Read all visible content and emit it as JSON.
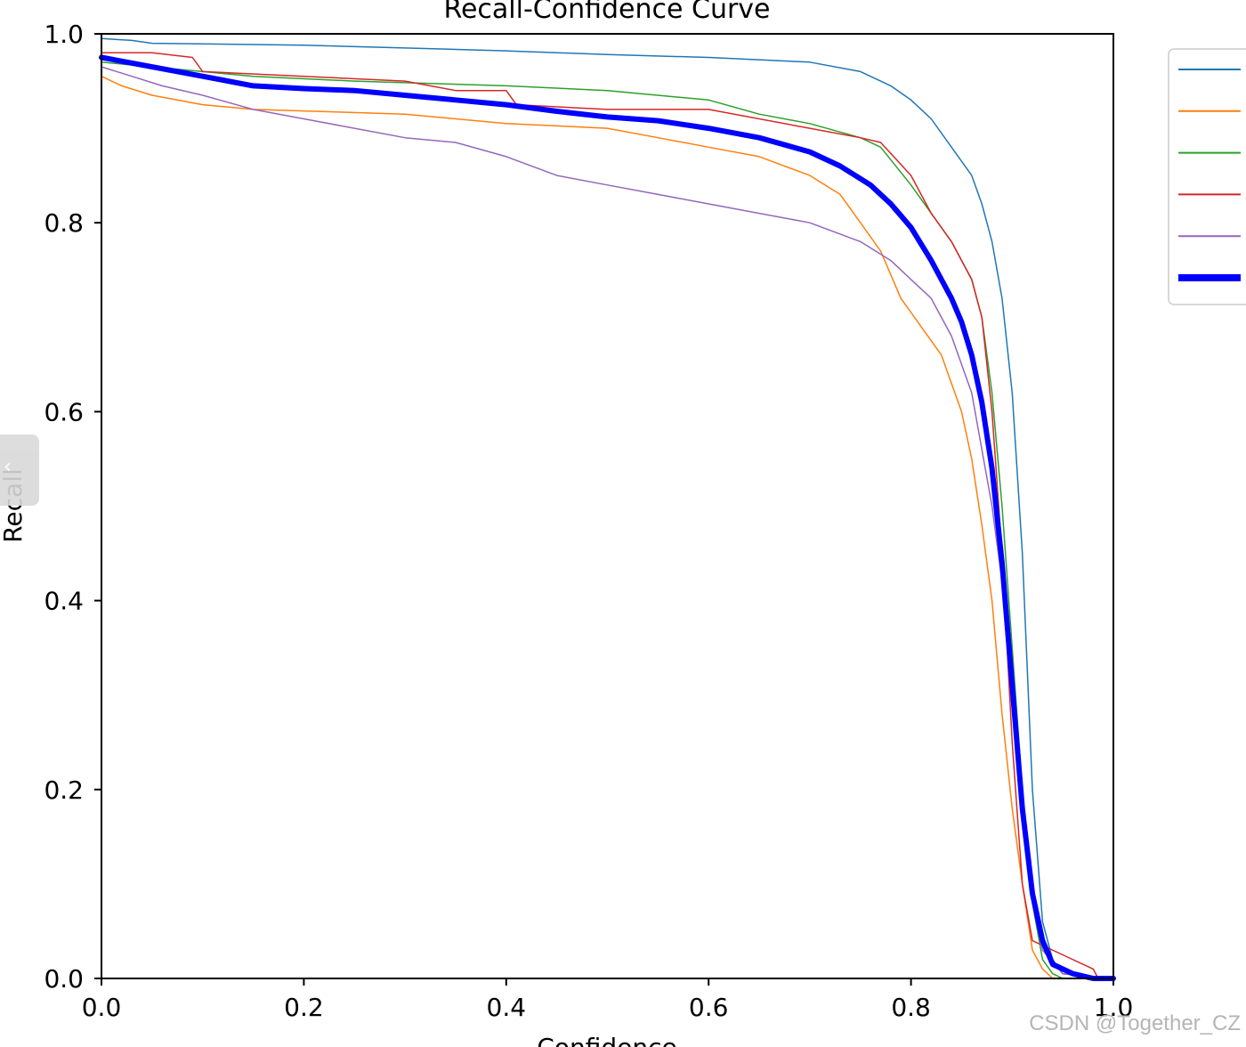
{
  "chart_data": {
    "type": "line",
    "title": "Recall-Confidence Curve",
    "xlabel": "Confidence",
    "ylabel": "Recall",
    "xlim": [
      0,
      1
    ],
    "ylim": [
      0,
      1
    ],
    "xticks": [
      "0.0",
      "0.2",
      "0.4",
      "0.6",
      "0.8",
      "1.0"
    ],
    "yticks": [
      "0.0",
      "0.2",
      "0.4",
      "0.6",
      "0.8",
      "1.0"
    ],
    "grid": false,
    "legend_position": "upper right outside axes",
    "series": [
      {
        "color": "#1f77b4",
        "width": 1.5,
        "x": [
          0,
          0.03,
          0.05,
          0.2,
          0.3,
          0.4,
          0.5,
          0.6,
          0.7,
          0.75,
          0.78,
          0.8,
          0.82,
          0.84,
          0.86,
          0.87,
          0.88,
          0.89,
          0.9,
          0.91,
          0.92,
          0.93,
          0.94,
          0.95,
          1.0
        ],
        "y": [
          0.995,
          0.993,
          0.99,
          0.988,
          0.985,
          0.982,
          0.978,
          0.975,
          0.97,
          0.96,
          0.945,
          0.93,
          0.91,
          0.88,
          0.85,
          0.82,
          0.78,
          0.72,
          0.62,
          0.45,
          0.2,
          0.06,
          0.02,
          0.005,
          0.0
        ]
      },
      {
        "color": "#ff7f0e",
        "width": 1.5,
        "x": [
          0,
          0.02,
          0.05,
          0.1,
          0.15,
          0.3,
          0.4,
          0.5,
          0.55,
          0.6,
          0.65,
          0.7,
          0.73,
          0.75,
          0.77,
          0.79,
          0.81,
          0.83,
          0.85,
          0.86,
          0.87,
          0.88,
          0.89,
          0.9,
          0.91,
          0.92,
          0.93,
          0.94,
          1.0
        ],
        "y": [
          0.955,
          0.945,
          0.935,
          0.925,
          0.92,
          0.915,
          0.905,
          0.9,
          0.89,
          0.88,
          0.87,
          0.85,
          0.83,
          0.8,
          0.77,
          0.72,
          0.69,
          0.66,
          0.6,
          0.55,
          0.48,
          0.4,
          0.28,
          0.18,
          0.1,
          0.03,
          0.01,
          0.0,
          0.0
        ]
      },
      {
        "color": "#2ca02c",
        "width": 1.5,
        "x": [
          0,
          0.05,
          0.1,
          0.15,
          0.25,
          0.4,
          0.5,
          0.6,
          0.65,
          0.7,
          0.75,
          0.77,
          0.8,
          0.82,
          0.84,
          0.86,
          0.87,
          0.88,
          0.89,
          0.9,
          0.91,
          0.92,
          0.93,
          0.94,
          0.95,
          1.0
        ],
        "y": [
          0.97,
          0.965,
          0.96,
          0.955,
          0.95,
          0.945,
          0.94,
          0.93,
          0.915,
          0.905,
          0.89,
          0.88,
          0.84,
          0.81,
          0.78,
          0.74,
          0.7,
          0.62,
          0.5,
          0.35,
          0.2,
          0.08,
          0.02,
          0.005,
          0.0,
          0.0
        ]
      },
      {
        "color": "#d62728",
        "width": 1.5,
        "x": [
          0,
          0.05,
          0.09,
          0.1,
          0.2,
          0.3,
          0.35,
          0.4,
          0.41,
          0.5,
          0.6,
          0.7,
          0.75,
          0.77,
          0.8,
          0.82,
          0.84,
          0.86,
          0.87,
          0.88,
          0.89,
          0.9,
          0.91,
          0.92,
          0.95,
          0.98,
          0.985,
          1.0
        ],
        "y": [
          0.98,
          0.98,
          0.975,
          0.96,
          0.955,
          0.95,
          0.94,
          0.94,
          0.925,
          0.92,
          0.92,
          0.9,
          0.89,
          0.885,
          0.85,
          0.81,
          0.78,
          0.74,
          0.7,
          0.6,
          0.45,
          0.25,
          0.1,
          0.04,
          0.025,
          0.01,
          0.0,
          0.0
        ]
      },
      {
        "color": "#9467bd",
        "width": 1.5,
        "x": [
          0,
          0.03,
          0.06,
          0.1,
          0.15,
          0.2,
          0.25,
          0.3,
          0.35,
          0.4,
          0.45,
          0.5,
          0.55,
          0.6,
          0.65,
          0.7,
          0.75,
          0.78,
          0.8,
          0.82,
          0.84,
          0.86,
          0.87,
          0.88,
          0.89,
          0.9,
          0.91,
          0.92,
          0.93,
          0.95,
          1.0
        ],
        "y": [
          0.965,
          0.955,
          0.945,
          0.935,
          0.92,
          0.91,
          0.9,
          0.89,
          0.885,
          0.87,
          0.85,
          0.84,
          0.83,
          0.82,
          0.81,
          0.8,
          0.78,
          0.76,
          0.74,
          0.72,
          0.68,
          0.62,
          0.56,
          0.5,
          0.42,
          0.3,
          0.18,
          0.08,
          0.03,
          0.005,
          0.0
        ]
      },
      {
        "color": "#0000ff",
        "width": 6,
        "x": [
          0,
          0.05,
          0.1,
          0.15,
          0.2,
          0.25,
          0.3,
          0.35,
          0.4,
          0.45,
          0.5,
          0.55,
          0.6,
          0.65,
          0.7,
          0.73,
          0.76,
          0.78,
          0.8,
          0.82,
          0.84,
          0.85,
          0.86,
          0.87,
          0.88,
          0.89,
          0.9,
          0.91,
          0.92,
          0.93,
          0.94,
          0.96,
          0.98,
          1.0
        ],
        "y": [
          0.975,
          0.965,
          0.955,
          0.945,
          0.942,
          0.94,
          0.935,
          0.93,
          0.925,
          0.918,
          0.912,
          0.908,
          0.9,
          0.89,
          0.875,
          0.86,
          0.84,
          0.82,
          0.795,
          0.76,
          0.72,
          0.695,
          0.66,
          0.61,
          0.54,
          0.44,
          0.31,
          0.18,
          0.09,
          0.04,
          0.015,
          0.005,
          0.0,
          0.0
        ]
      }
    ]
  },
  "watermark": "CSDN @Together_CZ"
}
